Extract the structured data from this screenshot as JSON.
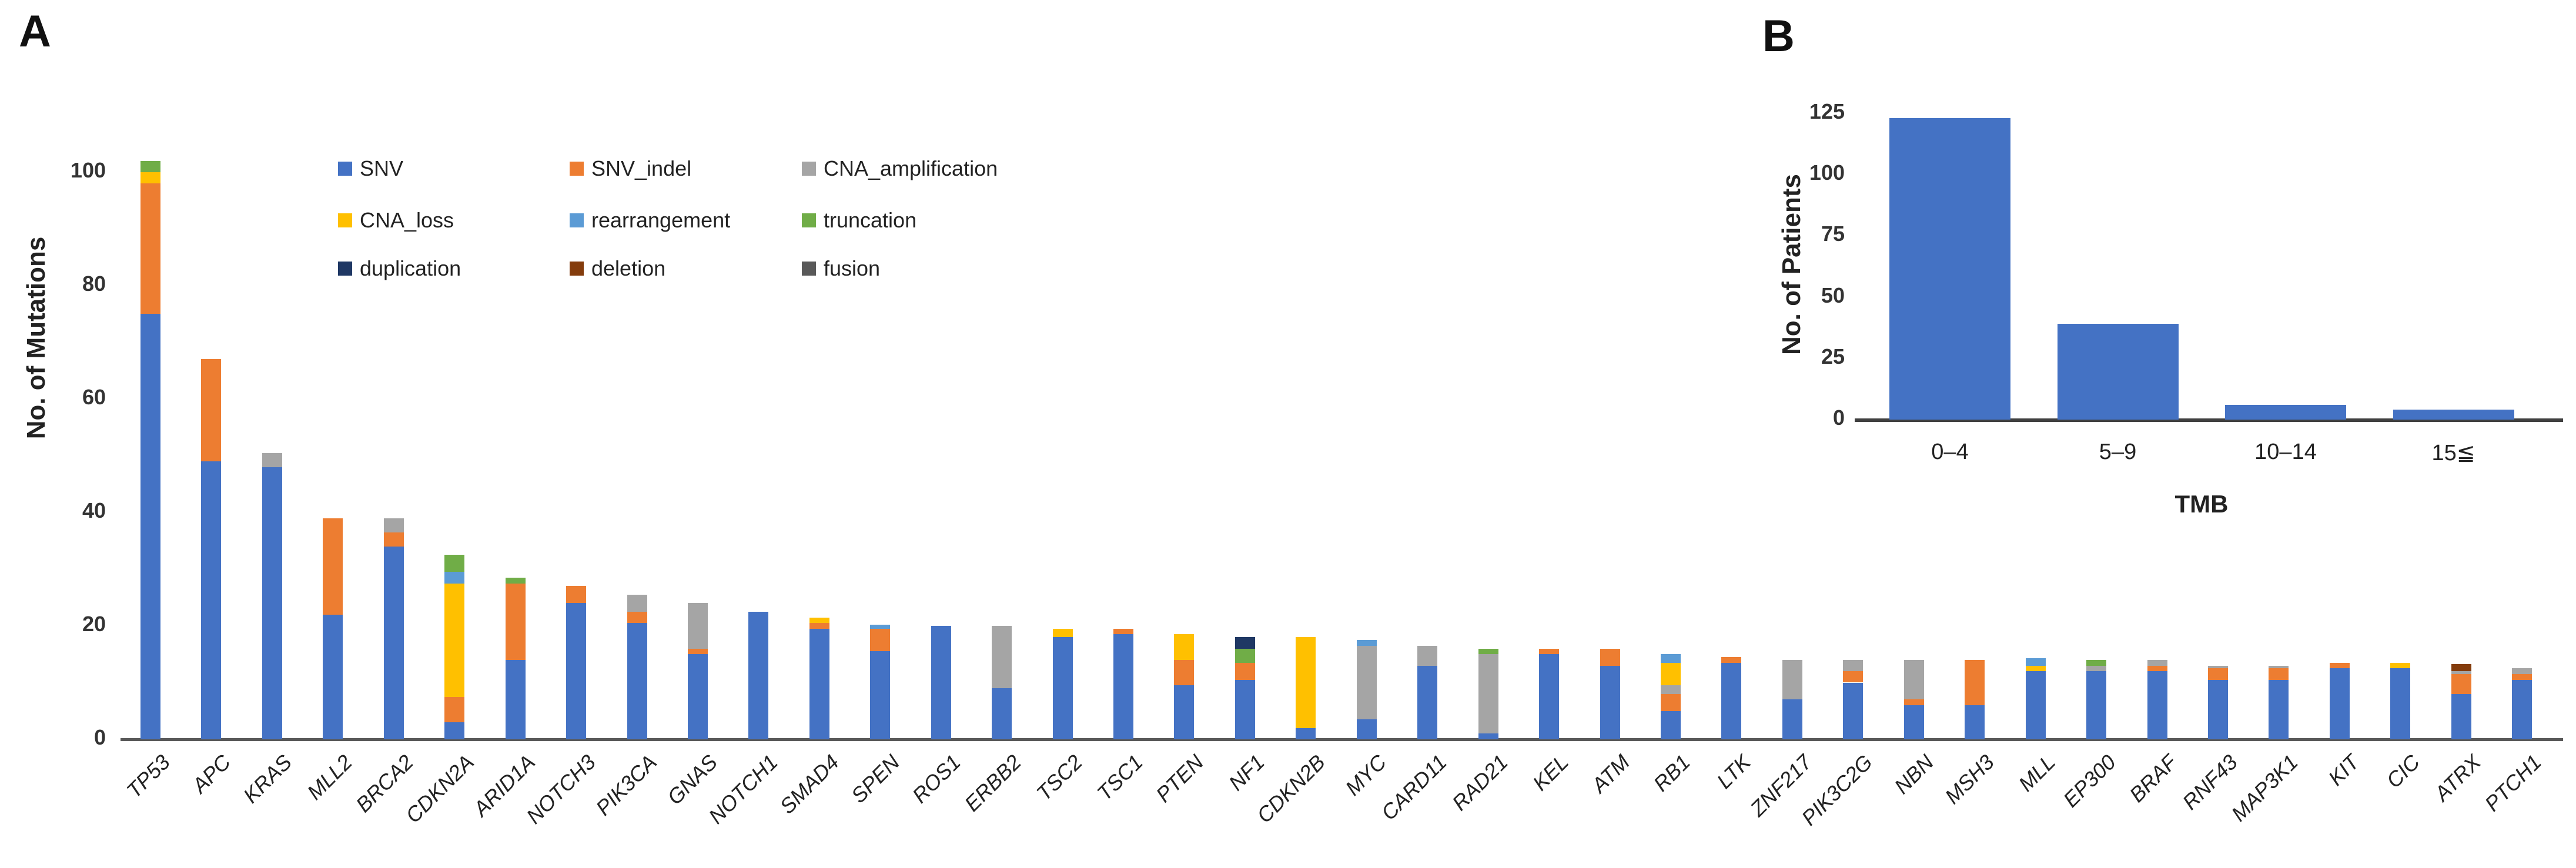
{
  "panels": {
    "a": "A",
    "b": "B"
  },
  "palette": {
    "SNV": "#4472C4",
    "SNV_indel": "#ED7D31",
    "CNA_amplification": "#A5A5A5",
    "CNA_loss": "#FFC000",
    "rearrangement": "#5B9BD5",
    "truncation": "#70AD47",
    "duplication": "#1F3864",
    "deletion": "#843C0C",
    "fusion": "#595959"
  },
  "legend": {
    "items": [
      "SNV",
      "SNV_indel",
      "CNA_amplification",
      "CNA_loss",
      "rearrangement",
      "truncation",
      "duplication",
      "deletion",
      "fusion"
    ]
  },
  "chart_data": [
    {
      "type": "bar",
      "stacked": true,
      "title": "",
      "xlabel": "",
      "ylabel": "No. of Mutations",
      "ylim": [
        0,
        100
      ],
      "yticks": [
        0,
        20,
        40,
        60,
        80,
        100
      ],
      "grid": false,
      "legend_position": "inside-top-left",
      "categories": [
        "TP53",
        "APC",
        "KRAS",
        "MLL2",
        "BRCA2",
        "CDKN2A",
        "ARID1A",
        "NOTCH3",
        "PIK3CA",
        "GNAS",
        "NOTCH1",
        "SMAD4",
        "SPEN",
        "ROS1",
        "ERBB2",
        "TSC2",
        "TSC1",
        "PTEN",
        "NF1",
        "CDKN2B",
        "MYC",
        "CARD11",
        "RAD21",
        "KEL",
        "ATM",
        "RB1",
        "LTK",
        "ZNF217",
        "PIK3C2G",
        "NBN",
        "MSH3",
        "MLL",
        "EP300",
        "BRAF",
        "RNF43",
        "MAP3K1",
        "KIT",
        "CIC",
        "ATRX",
        "PTCH1"
      ],
      "bars": [
        {
          "gene": "TP53",
          "segments": [
            [
              "SNV",
              75
            ],
            [
              "SNV_indel",
              23
            ],
            [
              "CNA_loss",
              2
            ],
            [
              "truncation",
              2
            ]
          ]
        },
        {
          "gene": "APC",
          "segments": [
            [
              "SNV",
              49
            ],
            [
              "SNV_indel",
              18
            ]
          ]
        },
        {
          "gene": "KRAS",
          "segments": [
            [
              "SNV",
              48
            ],
            [
              "CNA_amplification",
              2.5
            ]
          ]
        },
        {
          "gene": "MLL2",
          "segments": [
            [
              "SNV",
              22
            ],
            [
              "SNV_indel",
              17
            ]
          ]
        },
        {
          "gene": "BRCA2",
          "segments": [
            [
              "SNV",
              34
            ],
            [
              "SNV_indel",
              2.5
            ],
            [
              "CNA_amplification",
              2.5
            ]
          ]
        },
        {
          "gene": "CDKN2A",
          "segments": [
            [
              "SNV",
              3
            ],
            [
              "SNV_indel",
              4.5
            ],
            [
              "CNA_loss",
              20
            ],
            [
              "rearrangement",
              2
            ],
            [
              "truncation",
              3
            ]
          ]
        },
        {
          "gene": "ARID1A",
          "segments": [
            [
              "SNV",
              14
            ],
            [
              "SNV_indel",
              13.5
            ],
            [
              "truncation",
              1
            ]
          ]
        },
        {
          "gene": "NOTCH3",
          "segments": [
            [
              "SNV",
              24
            ],
            [
              "SNV_indel",
              3
            ]
          ]
        },
        {
          "gene": "PIK3CA",
          "segments": [
            [
              "SNV",
              20.5
            ],
            [
              "SNV_indel",
              2
            ],
            [
              "CNA_amplification",
              3
            ]
          ]
        },
        {
          "gene": "GNAS",
          "segments": [
            [
              "SNV",
              15
            ],
            [
              "SNV_indel",
              1
            ],
            [
              "CNA_amplification",
              8
            ]
          ]
        },
        {
          "gene": "NOTCH1",
          "segments": [
            [
              "SNV",
              22.5
            ]
          ]
        },
        {
          "gene": "SMAD4",
          "segments": [
            [
              "SNV",
              19.5
            ],
            [
              "SNV_indel",
              1
            ],
            [
              "CNA_loss",
              1
            ]
          ]
        },
        {
          "gene": "SPEN",
          "segments": [
            [
              "SNV",
              15.5
            ],
            [
              "SNV_indel",
              4
            ],
            [
              "rearrangement",
              0.7
            ]
          ]
        },
        {
          "gene": "ROS1",
          "segments": [
            [
              "SNV",
              20
            ]
          ]
        },
        {
          "gene": "ERBB2",
          "segments": [
            [
              "SNV",
              9
            ],
            [
              "CNA_amplification",
              11
            ]
          ]
        },
        {
          "gene": "TSC2",
          "segments": [
            [
              "SNV",
              18
            ],
            [
              "CNA_loss",
              1.5
            ]
          ]
        },
        {
          "gene": "TSC1",
          "segments": [
            [
              "SNV",
              18.5
            ],
            [
              "SNV_indel",
              1
            ]
          ]
        },
        {
          "gene": "PTEN",
          "segments": [
            [
              "SNV",
              9.5
            ],
            [
              "SNV_indel",
              4.5
            ],
            [
              "CNA_loss",
              4.5
            ]
          ]
        },
        {
          "gene": "NF1",
          "segments": [
            [
              "SNV",
              10.5
            ],
            [
              "SNV_indel",
              3
            ],
            [
              "truncation",
              2.5
            ],
            [
              "duplication",
              2
            ]
          ]
        },
        {
          "gene": "CDKN2B",
          "segments": [
            [
              "SNV",
              2
            ],
            [
              "CNA_loss",
              16
            ]
          ]
        },
        {
          "gene": "MYC",
          "segments": [
            [
              "SNV",
              3.5
            ],
            [
              "CNA_amplification",
              13
            ],
            [
              "rearrangement",
              1
            ]
          ]
        },
        {
          "gene": "CARD11",
          "segments": [
            [
              "SNV",
              13
            ],
            [
              "CNA_amplification",
              3.5
            ]
          ]
        },
        {
          "gene": "RAD21",
          "segments": [
            [
              "SNV",
              1
            ],
            [
              "CNA_amplification",
              14
            ],
            [
              "truncation",
              1
            ]
          ]
        },
        {
          "gene": "KEL",
          "segments": [
            [
              "SNV",
              15
            ],
            [
              "SNV_indel",
              1
            ]
          ]
        },
        {
          "gene": "ATM",
          "segments": [
            [
              "SNV",
              13
            ],
            [
              "SNV_indel",
              3
            ]
          ]
        },
        {
          "gene": "RB1",
          "segments": [
            [
              "SNV",
              5
            ],
            [
              "SNV_indel",
              3
            ],
            [
              "CNA_amplification",
              1.5
            ],
            [
              "CNA_loss",
              4
            ],
            [
              "rearrangement",
              1.5
            ]
          ]
        },
        {
          "gene": "LTK",
          "segments": [
            [
              "SNV",
              13.5
            ],
            [
              "SNV_indel",
              1
            ]
          ]
        },
        {
          "gene": "ZNF217",
          "segments": [
            [
              "SNV",
              7
            ],
            [
              "CNA_amplification",
              7
            ]
          ]
        },
        {
          "gene": "PIK3C2G",
          "segments": [
            [
              "SNV",
              10
            ],
            [
              "SNV_indel",
              2
            ],
            [
              "CNA_amplification",
              2
            ]
          ]
        },
        {
          "gene": "NBN",
          "segments": [
            [
              "SNV",
              6
            ],
            [
              "SNV_indel",
              1
            ],
            [
              "CNA_amplification",
              7
            ]
          ]
        },
        {
          "gene": "MSH3",
          "segments": [
            [
              "SNV",
              6
            ],
            [
              "SNV_indel",
              8
            ]
          ]
        },
        {
          "gene": "MLL",
          "segments": [
            [
              "SNV",
              12
            ],
            [
              "CNA_loss",
              1
            ],
            [
              "rearrangement",
              1.3
            ]
          ]
        },
        {
          "gene": "EP300",
          "segments": [
            [
              "SNV",
              12
            ],
            [
              "CNA_amplification",
              1
            ],
            [
              "truncation",
              1
            ]
          ]
        },
        {
          "gene": "BRAF",
          "segments": [
            [
              "SNV",
              12
            ],
            [
              "SNV_indel",
              1
            ],
            [
              "CNA_amplification",
              1
            ]
          ]
        },
        {
          "gene": "RNF43",
          "segments": [
            [
              "SNV",
              10.5
            ],
            [
              "SNV_indel",
              2
            ],
            [
              "CNA_amplification",
              0.5
            ]
          ]
        },
        {
          "gene": "MAP3K1",
          "segments": [
            [
              "SNV",
              10.5
            ],
            [
              "SNV_indel",
              2
            ],
            [
              "CNA_amplification",
              0.5
            ]
          ]
        },
        {
          "gene": "KIT",
          "segments": [
            [
              "SNV",
              12.5
            ],
            [
              "SNV_indel",
              1
            ]
          ]
        },
        {
          "gene": "CIC",
          "segments": [
            [
              "SNV",
              12.5
            ],
            [
              "CNA_loss",
              1
            ]
          ]
        },
        {
          "gene": "ATRX",
          "segments": [
            [
              "SNV",
              8
            ],
            [
              "SNV_indel",
              3.5
            ],
            [
              "CNA_amplification",
              0.5
            ],
            [
              "deletion",
              1.3
            ]
          ]
        },
        {
          "gene": "PTCH1",
          "segments": [
            [
              "SNV",
              10.5
            ],
            [
              "SNV_indel",
              1
            ],
            [
              "CNA_amplification",
              1
            ]
          ]
        }
      ]
    },
    {
      "type": "bar",
      "stacked": false,
      "title": "",
      "xlabel": "TMB",
      "ylabel": "No. of Patients",
      "ylim": [
        0,
        125
      ],
      "yticks": [
        0,
        25,
        50,
        75,
        100,
        125
      ],
      "grid": false,
      "categories": [
        "0–4",
        "5–9",
        "10–14",
        "15≦"
      ],
      "values": [
        123,
        39,
        6,
        4
      ],
      "bar_color": "#4472C4"
    }
  ]
}
